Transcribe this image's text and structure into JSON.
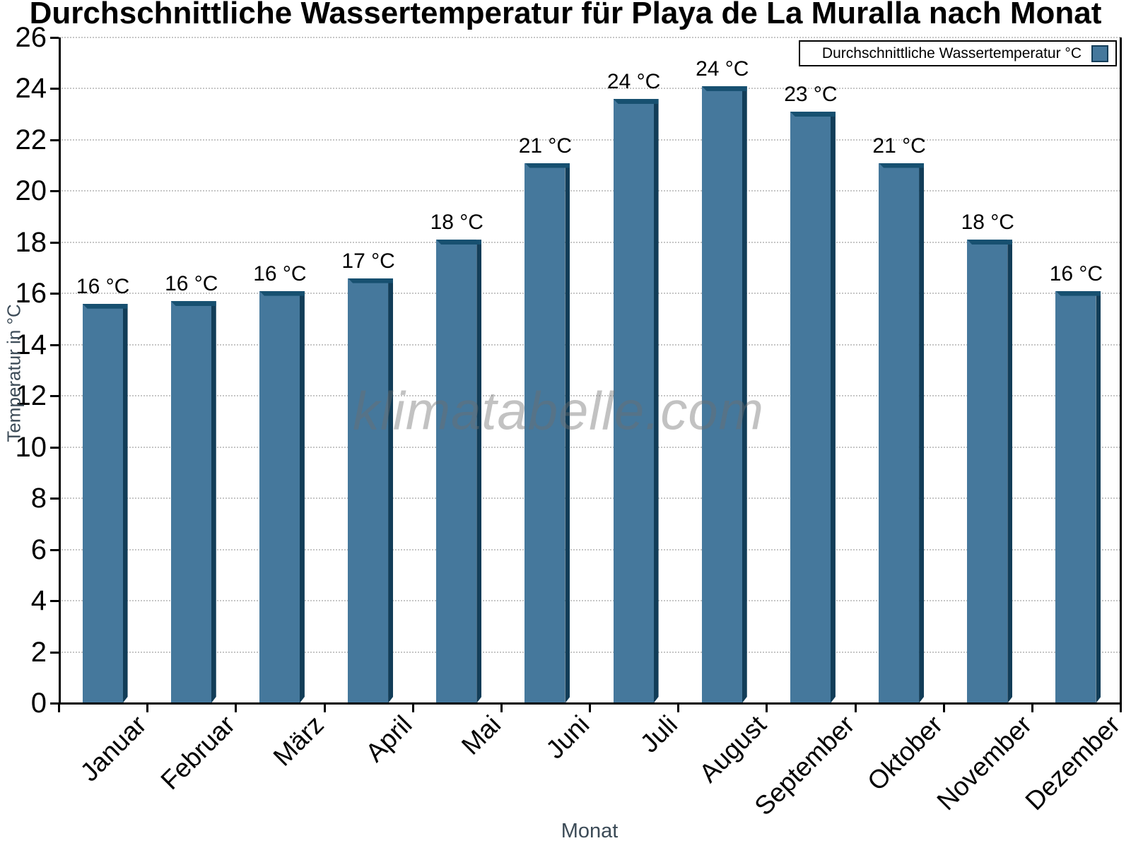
{
  "title": "Durchschnittliche Wassertemperatur für Playa de La Muralla nach Monat",
  "watermark": "klimatabelle.com",
  "legend": {
    "label": "Durchschnittliche Wassertemperatur °C",
    "swatch_color": "#45789c"
  },
  "axes": {
    "y_title": "Temperatur in °C",
    "x_title": "Monat"
  },
  "chart_data": {
    "type": "bar",
    "title": "Durchschnittliche Wassertemperatur für Playa de La Muralla nach Monat",
    "categories": [
      "Januar",
      "Februar",
      "März",
      "April",
      "Mai",
      "Juni",
      "Juli",
      "August",
      "September",
      "Oktober",
      "November",
      "Dezember"
    ],
    "values": [
      15.6,
      15.7,
      16.1,
      16.6,
      18.1,
      21.1,
      23.6,
      24.1,
      23.1,
      21.1,
      18.1,
      16.1
    ],
    "bar_labels": [
      "16 °C",
      "16 °C",
      "16 °C",
      "17 °C",
      "18 °C",
      "21 °C",
      "24 °C",
      "24 °C",
      "23 °C",
      "21 °C",
      "18 °C",
      "16 °C"
    ],
    "xlabel": "Monat",
    "ylabel": "Temperatur in °C",
    "ylim": [
      0,
      26
    ],
    "y_ticks": [
      0,
      2,
      4,
      6,
      8,
      10,
      12,
      14,
      16,
      18,
      20,
      22,
      24,
      26
    ],
    "grid": "horizontal-dotted",
    "legend_position": "top-right",
    "legend_label": "Durchschnittliche Wassertemperatur °C",
    "colors": {
      "bar_fill": "#45789c",
      "bar_side": "#123d58",
      "bar_top": "#175070",
      "gridline": "#c6c6c6",
      "axis": "#000000",
      "axis_title": "#3c4b57",
      "watermark": "#6e6e6e"
    }
  }
}
